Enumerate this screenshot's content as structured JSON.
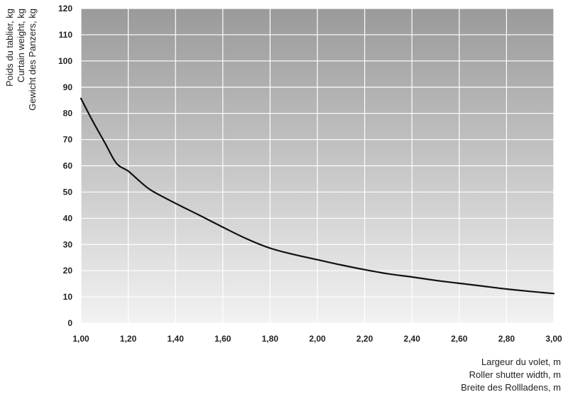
{
  "chart_data": {
    "type": "line",
    "xlabel_lines": [
      "Largeur du volet, m",
      "Roller shutter width, m",
      "Breite des Rollladens, m"
    ],
    "ylabel_lines": [
      "Poids du tablier, kg",
      "Curtain weight, kg",
      "Gewicht des Panzers, kg"
    ],
    "xlim": [
      1.0,
      3.0
    ],
    "ylim": [
      0,
      120
    ],
    "x_ticks": [
      1.0,
      1.2,
      1.4,
      1.6,
      1.8,
      2.0,
      2.2,
      2.4,
      2.6,
      2.8,
      3.0
    ],
    "x_tick_labels": [
      "1,00",
      "1,20",
      "1,40",
      "1,60",
      "1,80",
      "2,00",
      "2,20",
      "2,40",
      "2,60",
      "2,80",
      "3,00"
    ],
    "y_ticks": [
      0,
      10,
      20,
      30,
      40,
      50,
      60,
      70,
      80,
      90,
      100,
      110,
      120
    ],
    "y_tick_labels": [
      "0",
      "10",
      "20",
      "30",
      "40",
      "50",
      "60",
      "70",
      "80",
      "90",
      "100",
      "110",
      "120"
    ],
    "grid": true,
    "legend": "none",
    "background_gradient": [
      "#9a9a9a",
      "#f2f2f2"
    ],
    "line_color": "#111111",
    "series": [
      {
        "x": [
          1.0,
          1.05,
          1.1,
          1.15,
          1.2,
          1.25,
          1.3,
          1.4,
          1.5,
          1.6,
          1.7,
          1.8,
          1.9,
          2.0,
          2.1,
          2.2,
          2.3,
          2.4,
          2.5,
          2.6,
          2.7,
          2.8,
          2.9,
          3.0
        ],
        "y": [
          85.7,
          77,
          69,
          61,
          58,
          54,
          50.5,
          45.7,
          41.2,
          36.6,
          32.2,
          28.6,
          26.2,
          24.2,
          22.2,
          20.4,
          18.8,
          17.6,
          16.3,
          15.2,
          14.1,
          13.0,
          12.1,
          11.3
        ]
      }
    ]
  }
}
